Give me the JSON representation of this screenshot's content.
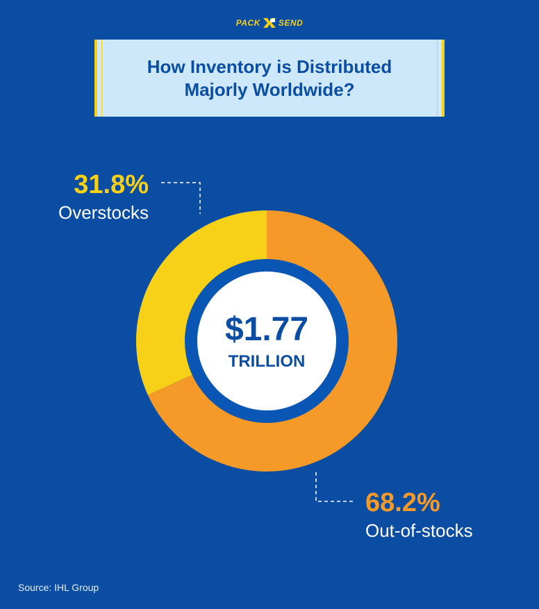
{
  "logo": {
    "left_word": "PACK",
    "right_word": "SEND"
  },
  "title": {
    "line1": "How Inventory is Distributed",
    "line2": "Majorly Worldwide?"
  },
  "center": {
    "value": "$1.77",
    "unit": "TRILLION"
  },
  "source": "Source: IHL Group",
  "colors": {
    "background": "#0b4da2",
    "overstocks": "#f7d117",
    "out_of_stocks": "#f59a28",
    "title_bg": "#cde8fb",
    "inner_ring": "#0a56b4",
    "center_fill": "#ffffff",
    "center_text": "#0b4da2"
  },
  "chart_data": {
    "type": "pie",
    "style": "donut",
    "title": "How Inventory is Distributed Majorly Worldwide?",
    "total_label": "$1.77 TRILLION",
    "slices": [
      {
        "name": "Overstocks",
        "value": 31.8,
        "label": "31.8%",
        "color": "#f7d117"
      },
      {
        "name": "Out-of-stocks",
        "value": 68.2,
        "label": "68.2%",
        "color": "#f59a28"
      }
    ],
    "start": "12 o'clock",
    "direction": "counter-clockwise for Overstocks, clockwise for Out-of-stocks",
    "legend": "none"
  }
}
